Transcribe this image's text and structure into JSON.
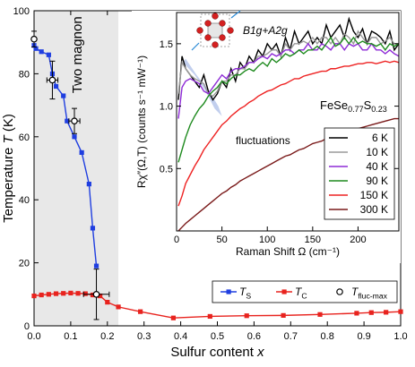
{
  "chart_data": [
    {
      "type": "line",
      "xlabel": "Sulfur content x",
      "ylabel": "Temperature T (K)",
      "xlim": [
        0,
        1.0
      ],
      "ylim": [
        0,
        100
      ],
      "xticks": [
        0.0,
        0.1,
        0.2,
        0.3,
        0.4,
        0.5,
        0.6,
        0.7,
        0.8,
        0.9,
        1.0
      ],
      "yticks": [
        0,
        20,
        40,
        60,
        80,
        100
      ],
      "xtick_labels": [
        "0.0",
        "0.1",
        "0.2",
        "0.3",
        "0.4",
        "0.5",
        "0.6",
        "0.7",
        "0.8",
        "0.9",
        "1.0"
      ],
      "ytick_labels": [
        "0",
        "20",
        "40",
        "60",
        "80",
        "100"
      ],
      "grid": false,
      "shaded_region": {
        "x_from": 0,
        "x_to": 0.23,
        "label": "Two magnon",
        "color": "#e8e8e8"
      },
      "legend_position": "lower-right",
      "series": [
        {
          "name": "TS",
          "name_main": "T",
          "name_sub": "S",
          "color": "#1f3ee0",
          "marker": "square",
          "x": [
            0.0,
            0.005,
            0.02,
            0.04,
            0.05,
            0.06,
            0.08,
            0.09,
            0.11,
            0.13,
            0.15,
            0.16,
            0.17
          ],
          "y": [
            89,
            88,
            87,
            86,
            80,
            76,
            73,
            65,
            60,
            55,
            45,
            31,
            19
          ]
        },
        {
          "name": "TC",
          "name_main": "T",
          "name_sub": "C",
          "color": "#e8231e",
          "marker": "square",
          "x": [
            0.0,
            0.02,
            0.04,
            0.06,
            0.08,
            0.1,
            0.12,
            0.14,
            0.16,
            0.18,
            0.2,
            0.23,
            0.29,
            0.38,
            0.48,
            0.58,
            0.68,
            0.78,
            0.88,
            0.92,
            0.96,
            1.0
          ],
          "y": [
            9.5,
            9.8,
            10,
            10.2,
            10.3,
            10.4,
            10.3,
            10.2,
            9.8,
            9.5,
            7.5,
            6,
            4.5,
            2.5,
            3,
            3.2,
            3.3,
            3.6,
            4,
            4.2,
            4.3,
            4.5
          ]
        },
        {
          "name": "Tfluc-max",
          "name_main": "T",
          "name_sub": "fluc-max",
          "color": "#000000",
          "marker": "open-circle",
          "x": [
            0.0,
            0.05,
            0.11,
            0.17
          ],
          "y": [
            91,
            78,
            65,
            10
          ],
          "xerr": [
            0.0,
            0.015,
            0.015,
            0.035
          ],
          "yerr": [
            2.5,
            6,
            4,
            8
          ]
        }
      ]
    },
    {
      "type": "line",
      "xlabel": "Raman Shift Ω (cm⁻¹)",
      "ylabel": "Rχ″(Ω,T) (counts s⁻¹ mW⁻¹)",
      "xlim": [
        0,
        245
      ],
      "ylim": [
        0,
        1.75
      ],
      "xticks": [
        0,
        50,
        100,
        150,
        200
      ],
      "yticks": [
        0.5,
        1.0,
        1.5
      ],
      "xtick_labels": [
        "0",
        "50",
        "100",
        "150",
        "200"
      ],
      "ytick_labels": [
        "0.5",
        "1.0",
        "1.5"
      ],
      "annotations": {
        "compound": "FeSe0.77S0.23",
        "compound_main": "FeSe",
        "compound_sub": "0.77",
        "compound_s": "S",
        "compound_sub2": "0.23",
        "symmetry": "B1g+A2g",
        "fluctuations": "fluctuations"
      },
      "legend_position": "lower-right",
      "series": [
        {
          "name": "6 K",
          "color": "#000000",
          "x": [
            2,
            6,
            10,
            15,
            20,
            25,
            30,
            35,
            40,
            45,
            50,
            55,
            60,
            65,
            70,
            75,
            80,
            85,
            90,
            95,
            100,
            105,
            110,
            115,
            120,
            125,
            130,
            135,
            140,
            145,
            150,
            155,
            160,
            165,
            170,
            175,
            180,
            185,
            190,
            195,
            200,
            205,
            210,
            215,
            220,
            225,
            230,
            235,
            240,
            245
          ],
          "y": [
            1.05,
            1.4,
            1.3,
            1.25,
            1.2,
            1.15,
            1.25,
            1.12,
            1.05,
            1.1,
            1.2,
            1.15,
            1.3,
            1.2,
            1.35,
            1.3,
            1.4,
            1.35,
            1.45,
            1.4,
            1.5,
            1.45,
            1.5,
            1.4,
            1.55,
            1.45,
            1.6,
            1.5,
            1.55,
            1.6,
            1.5,
            1.55,
            1.5,
            1.65,
            1.55,
            1.6,
            1.65,
            1.55,
            1.7,
            1.6,
            1.55,
            1.62,
            1.5,
            1.6,
            1.58,
            1.55,
            1.5,
            1.6,
            1.45,
            1.5
          ]
        },
        {
          "name": "10 K",
          "color": "#9a9a9a",
          "x": [
            2,
            6,
            10,
            15,
            20,
            25,
            30,
            35,
            40,
            45,
            50,
            55,
            60,
            65,
            70,
            75,
            80,
            85,
            90,
            95,
            100,
            105,
            110,
            115,
            120,
            125,
            130,
            135,
            140,
            145,
            150,
            155,
            160,
            165,
            170,
            175,
            180,
            185,
            190,
            195,
            200,
            205,
            210,
            215,
            220,
            225,
            230,
            235,
            240,
            245
          ],
          "y": [
            1.1,
            1.35,
            1.3,
            1.25,
            1.22,
            1.2,
            1.18,
            1.1,
            1.08,
            1.12,
            1.2,
            1.2,
            1.25,
            1.25,
            1.3,
            1.3,
            1.35,
            1.35,
            1.4,
            1.4,
            1.42,
            1.45,
            1.45,
            1.4,
            1.5,
            1.45,
            1.5,
            1.5,
            1.52,
            1.5,
            1.55,
            1.5,
            1.55,
            1.55,
            1.5,
            1.55,
            1.5,
            1.58,
            1.55,
            1.5,
            1.6,
            1.55,
            1.5,
            1.55,
            1.55,
            1.5,
            1.52,
            1.55,
            1.5,
            1.5
          ]
        },
        {
          "name": "40 K",
          "color": "#8e2bd6",
          "x": [
            2,
            6,
            10,
            15,
            20,
            25,
            30,
            35,
            40,
            45,
            50,
            55,
            60,
            65,
            70,
            75,
            80,
            85,
            90,
            95,
            100,
            105,
            110,
            115,
            120,
            125,
            130,
            135,
            140,
            145,
            150,
            155,
            160,
            165,
            170,
            175,
            180,
            185,
            190,
            195,
            200,
            205,
            210,
            215,
            220,
            225,
            230,
            235,
            240,
            245
          ],
          "y": [
            0.9,
            1.15,
            1.2,
            1.22,
            1.2,
            1.18,
            1.12,
            1.1,
            1.15,
            1.2,
            1.25,
            1.22,
            1.28,
            1.3,
            1.3,
            1.32,
            1.35,
            1.35,
            1.38,
            1.4,
            1.38,
            1.42,
            1.4,
            1.42,
            1.45,
            1.45,
            1.42,
            1.45,
            1.45,
            1.5,
            1.45,
            1.45,
            1.5,
            1.48,
            1.45,
            1.5,
            1.5,
            1.45,
            1.5,
            1.48,
            1.5,
            1.45,
            1.45,
            1.5,
            1.45,
            1.45,
            1.42,
            1.45,
            1.42,
            1.4
          ]
        },
        {
          "name": "90 K",
          "color": "#1e8a1e",
          "x": [
            2,
            6,
            10,
            15,
            20,
            25,
            30,
            35,
            40,
            45,
            50,
            55,
            60,
            65,
            70,
            75,
            80,
            85,
            90,
            95,
            100,
            105,
            110,
            115,
            120,
            125,
            130,
            135,
            140,
            145,
            150,
            155,
            160,
            165,
            170,
            175,
            180,
            185,
            190,
            195,
            200,
            205,
            210,
            215,
            220,
            225,
            230,
            235,
            240,
            245
          ],
          "y": [
            0.55,
            0.65,
            0.75,
            0.85,
            0.92,
            0.98,
            1.02,
            1.08,
            1.12,
            1.15,
            1.2,
            1.18,
            1.22,
            1.25,
            1.25,
            1.28,
            1.3,
            1.28,
            1.32,
            1.35,
            1.32,
            1.38,
            1.35,
            1.38,
            1.42,
            1.4,
            1.42,
            1.45,
            1.42,
            1.45,
            1.45,
            1.48,
            1.45,
            1.5,
            1.55,
            1.48,
            1.5,
            1.55,
            1.5,
            1.55,
            1.5,
            1.52,
            1.5,
            1.5,
            1.48,
            1.5,
            1.45,
            1.5,
            1.48,
            1.5
          ]
        },
        {
          "name": "150 K",
          "color": "#ee2222",
          "x": [
            2,
            6,
            10,
            15,
            20,
            25,
            30,
            35,
            40,
            45,
            50,
            55,
            60,
            65,
            70,
            75,
            80,
            85,
            90,
            95,
            100,
            105,
            110,
            115,
            120,
            125,
            130,
            135,
            140,
            145,
            150,
            155,
            160,
            165,
            170,
            175,
            180,
            185,
            190,
            195,
            200,
            205,
            210,
            215,
            220,
            225,
            230,
            235,
            240,
            245
          ],
          "y": [
            0.2,
            0.28,
            0.38,
            0.45,
            0.52,
            0.58,
            0.65,
            0.7,
            0.75,
            0.8,
            0.85,
            0.88,
            0.92,
            0.95,
            0.98,
            1.0,
            1.03,
            1.05,
            1.08,
            1.1,
            1.12,
            1.13,
            1.15,
            1.17,
            1.18,
            1.2,
            1.22,
            1.22,
            1.24,
            1.25,
            1.26,
            1.27,
            1.28,
            1.28,
            1.3,
            1.3,
            1.31,
            1.32,
            1.32,
            1.33,
            1.34,
            1.34,
            1.35,
            1.35,
            1.34,
            1.35,
            1.36,
            1.35,
            1.36,
            1.35
          ]
        },
        {
          "name": "300 K",
          "color": "#7a1a1a",
          "x": [
            2,
            6,
            10,
            15,
            20,
            25,
            30,
            35,
            40,
            45,
            50,
            55,
            60,
            65,
            70,
            75,
            80,
            85,
            90,
            95,
            100,
            105,
            110,
            115,
            120,
            125,
            130,
            135,
            140,
            145,
            150,
            155,
            160,
            165,
            170,
            175,
            180,
            185,
            190,
            195,
            200,
            205,
            210,
            215,
            220,
            225,
            230,
            235,
            240,
            245
          ],
          "y": [
            0.0,
            0.03,
            0.06,
            0.09,
            0.12,
            0.15,
            0.18,
            0.21,
            0.24,
            0.27,
            0.3,
            0.32,
            0.35,
            0.37,
            0.4,
            0.42,
            0.44,
            0.46,
            0.48,
            0.5,
            0.52,
            0.54,
            0.56,
            0.58,
            0.6,
            0.61,
            0.63,
            0.65,
            0.66,
            0.68,
            0.7,
            0.71,
            0.72,
            0.74,
            0.75,
            0.76,
            0.78,
            0.79,
            0.8,
            0.81,
            0.82,
            0.83,
            0.84,
            0.85,
            0.86,
            0.87,
            0.88,
            0.89,
            0.9,
            0.9
          ]
        }
      ]
    }
  ]
}
